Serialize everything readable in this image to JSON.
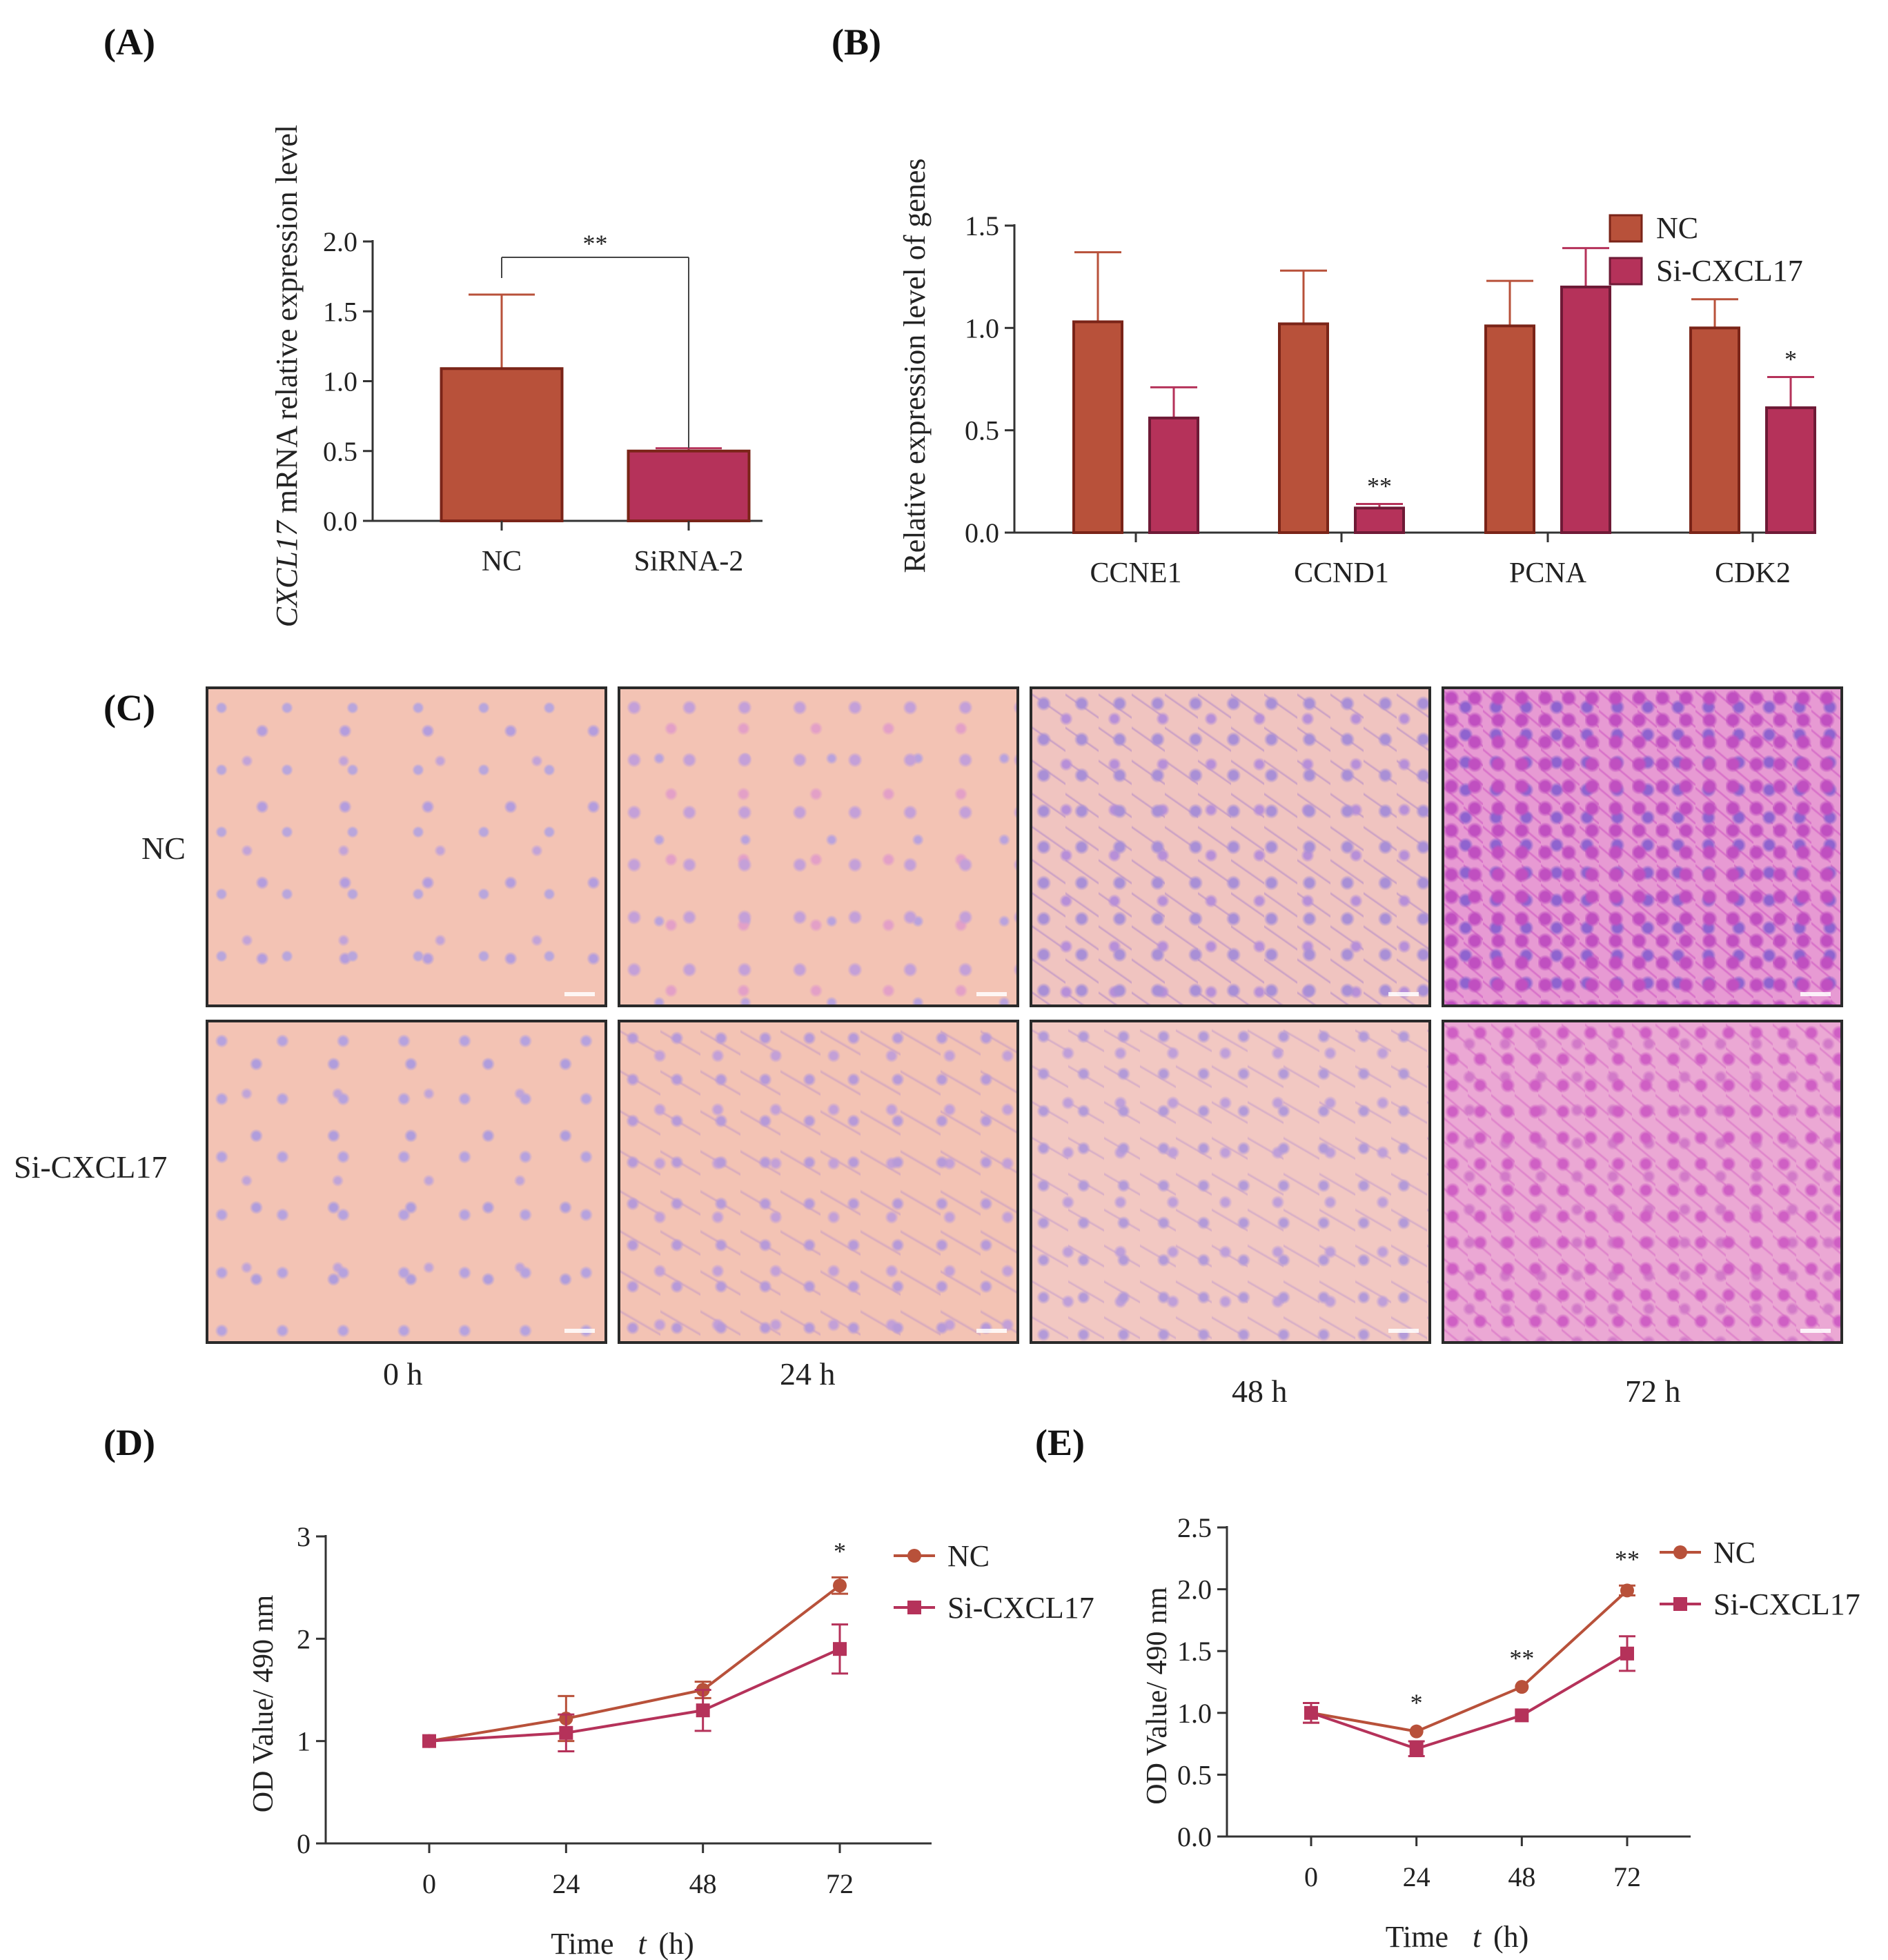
{
  "panels": {
    "a": "(A)",
    "b": "(B)",
    "c": "(C)",
    "d": "(D)",
    "e": "(E)"
  },
  "colors": {
    "nc": "#b8513a",
    "si": "#b5325a",
    "axis": "#333333",
    "sig": "#444444"
  },
  "chart_data": [
    {
      "id": "A",
      "type": "bar",
      "ylabel_italic": "CXCL17",
      "ylabel_rest": " mRNA relative expression level",
      "categories": [
        "NC",
        "SiRNA-2"
      ],
      "values": [
        1.09,
        0.5
      ],
      "errors": [
        0.53,
        0.02
      ],
      "ylim": [
        0,
        2.0
      ],
      "yticks": [
        0.0,
        0.5,
        1.0,
        1.5,
        2.0
      ],
      "ytick_labels": [
        "0.0",
        "0.5",
        "1.0",
        "1.5",
        "2.0"
      ],
      "bracket_label": "**"
    },
    {
      "id": "B",
      "type": "bar",
      "ylabel": "Relative expression level of genes",
      "categories": [
        "CCNE1",
        "CCND1",
        "PCNA",
        "CDK2"
      ],
      "series": [
        {
          "name": "NC",
          "values": [
            1.03,
            1.02,
            1.01,
            1.0
          ],
          "errors": [
            0.34,
            0.26,
            0.22,
            0.14
          ]
        },
        {
          "name": "Si-CXCL17",
          "values": [
            0.56,
            0.12,
            1.2,
            0.61
          ],
          "errors": [
            0.15,
            0.02,
            0.19,
            0.15
          ]
        }
      ],
      "significance": [
        "",
        "**",
        "",
        "*"
      ],
      "ylim": [
        0,
        1.5
      ],
      "yticks": [
        0.0,
        0.5,
        1.0,
        1.5
      ],
      "ytick_labels": [
        "0.0",
        "0.5",
        "1.0",
        "1.5"
      ],
      "legend": [
        "NC",
        "Si-CXCL17"
      ]
    },
    {
      "id": "D",
      "type": "line",
      "ylabel": "OD Value/ 490 nm",
      "xlabel": "Time",
      "xlabel_t": "t",
      "xlabel_unit": "(h)",
      "x": [
        0,
        24,
        48,
        72
      ],
      "xtick_labels": [
        "0",
        "24",
        "48",
        "72"
      ],
      "series": [
        {
          "name": "NC",
          "values": [
            1.0,
            1.22,
            1.5,
            2.52
          ],
          "errors": [
            0.02,
            0.22,
            0.08,
            0.08
          ]
        },
        {
          "name": "Si-CXCL17",
          "values": [
            1.0,
            1.08,
            1.3,
            1.9
          ],
          "errors": [
            0.02,
            0.18,
            0.2,
            0.24
          ]
        }
      ],
      "significance": [
        "",
        "",
        "",
        "*"
      ],
      "ylim": [
        0,
        3
      ],
      "yticks": [
        0,
        1,
        2,
        3
      ],
      "ytick_labels": [
        "0",
        "1",
        "2",
        "3"
      ],
      "legend": [
        "NC",
        "Si-CXCL17"
      ]
    },
    {
      "id": "E",
      "type": "line",
      "ylabel": "OD Value/ 490 nm",
      "xlabel": "Time",
      "xlabel_t": "t",
      "xlabel_unit": "(h)",
      "x": [
        0,
        24,
        48,
        72
      ],
      "xtick_labels": [
        "0",
        "24",
        "48",
        "72"
      ],
      "series": [
        {
          "name": "NC",
          "values": [
            1.0,
            0.85,
            1.21,
            1.99
          ],
          "errors": [
            0.08,
            0.02,
            0.02,
            0.04
          ]
        },
        {
          "name": "Si-CXCL17",
          "values": [
            1.0,
            0.71,
            0.98,
            1.48
          ],
          "errors": [
            0.08,
            0.06,
            0.02,
            0.14
          ]
        }
      ],
      "significance": [
        "",
        "*",
        "**",
        "**"
      ],
      "ylim": [
        0,
        2.5
      ],
      "yticks": [
        0.0,
        0.5,
        1.0,
        1.5,
        2.0,
        2.5
      ],
      "ytick_labels": [
        "0.0",
        "0.5",
        "1.0",
        "1.5",
        "2.0",
        "2.5"
      ],
      "legend": [
        "NC",
        "Si-CXCL17"
      ]
    }
  ],
  "micrographs": {
    "rows": [
      "NC",
      "Si-CXCL17"
    ],
    "times": [
      "0 h",
      "24 h",
      "48 h",
      "72 h"
    ]
  }
}
